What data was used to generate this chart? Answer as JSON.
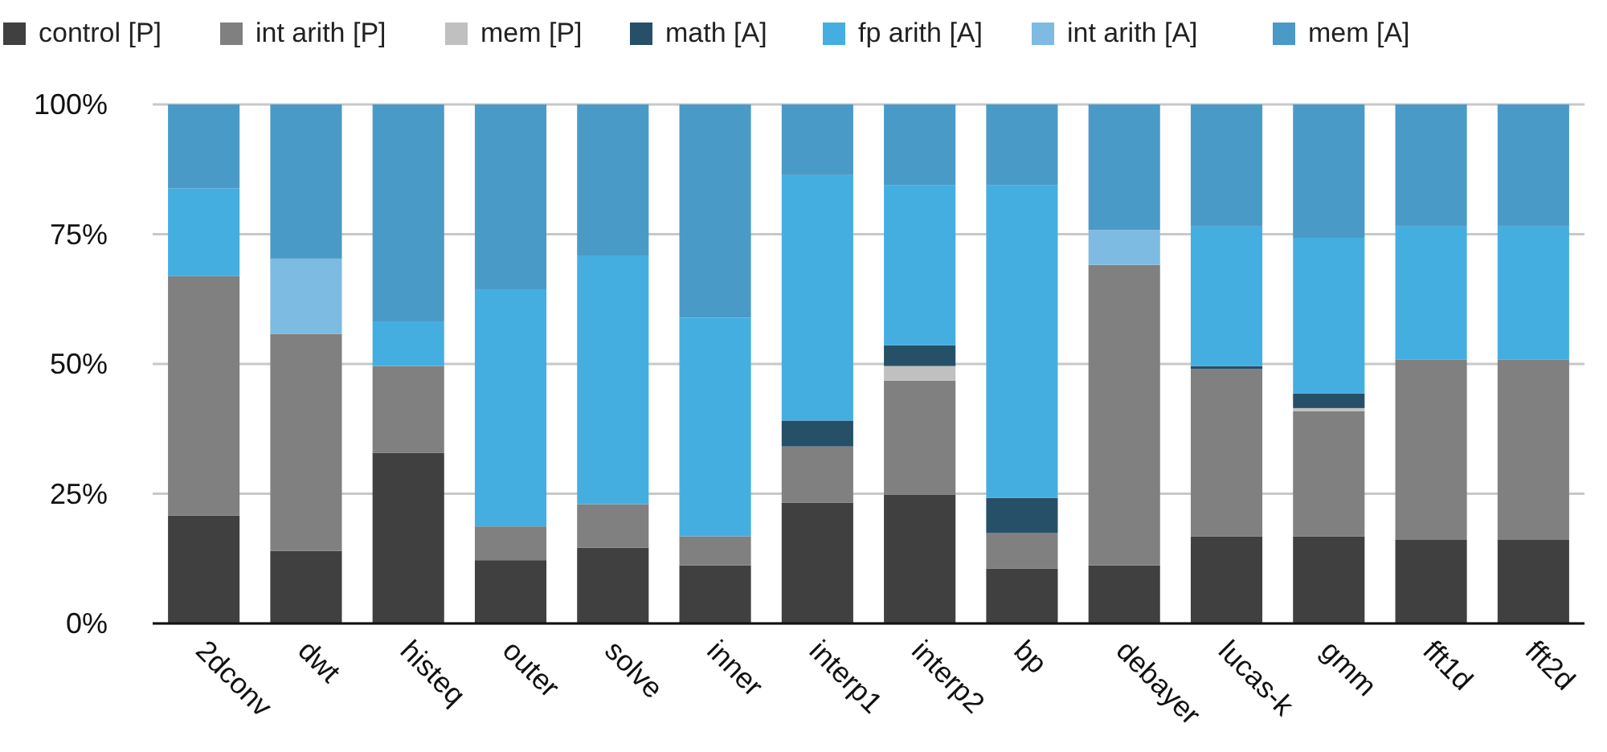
{
  "chart_data": {
    "type": "bar",
    "stacked": true,
    "categories": [
      "2dconv",
      "dwt",
      "histeq",
      "outer",
      "solve",
      "inner",
      "interp1",
      "interp2",
      "bp",
      "debayer",
      "lucas-k",
      "gmm",
      "fft1d",
      "fft2d"
    ],
    "series": [
      {
        "name": "control [P]",
        "color": "#404040",
        "values": [
          20.8,
          14.0,
          32.9,
          12.2,
          14.6,
          11.2,
          23.3,
          24.8,
          10.6,
          11.2,
          16.8,
          16.8,
          16.2,
          16.2
        ]
      },
      {
        "name": "int arith [P]",
        "color": "#808080",
        "values": [
          46.1,
          41.8,
          16.7,
          6.5,
          8.4,
          5.6,
          10.8,
          22.0,
          6.8,
          57.9,
          32.2,
          24.1,
          34.6,
          34.6
        ]
      },
      {
        "name": "mem [P]",
        "color": "#c0c0c0",
        "values": [
          0,
          0,
          0,
          0,
          0,
          0,
          0,
          2.8,
          0,
          0,
          0,
          0.6,
          0,
          0
        ]
      },
      {
        "name": "math [A]",
        "color": "#265068",
        "values": [
          0,
          0,
          0,
          0,
          0,
          0,
          5.0,
          4.0,
          6.8,
          0,
          0.6,
          2.8,
          0,
          0
        ]
      },
      {
        "name": "fp arith [A]",
        "color": "#45aee0",
        "values": [
          16.9,
          0,
          8.6,
          45.7,
          47.9,
          42.1,
          47.3,
          30.9,
          60.3,
          0,
          26.9,
          30.0,
          25.7,
          25.7
        ]
      },
      {
        "name": "int arith [A]",
        "color": "#7dbbe2",
        "values": [
          0,
          14.5,
          0,
          0,
          0,
          0,
          0,
          0,
          0,
          6.7,
          0,
          0,
          0,
          0
        ]
      },
      {
        "name": "mem [A]",
        "color": "#4a9ac8",
        "values": [
          16.2,
          29.7,
          41.8,
          35.6,
          29.1,
          41.1,
          13.6,
          15.5,
          15.5,
          24.2,
          23.5,
          25.7,
          23.5,
          23.5
        ]
      }
    ],
    "ylim": [
      0,
      100
    ],
    "yticks": [
      {
        "value": 0,
        "label": "0%"
      },
      {
        "value": 25,
        "label": "25%"
      },
      {
        "value": 50,
        "label": "50%"
      },
      {
        "value": 75,
        "label": "75%"
      },
      {
        "value": 100,
        "label": "100%"
      }
    ],
    "grid": "y",
    "legend": "top"
  }
}
